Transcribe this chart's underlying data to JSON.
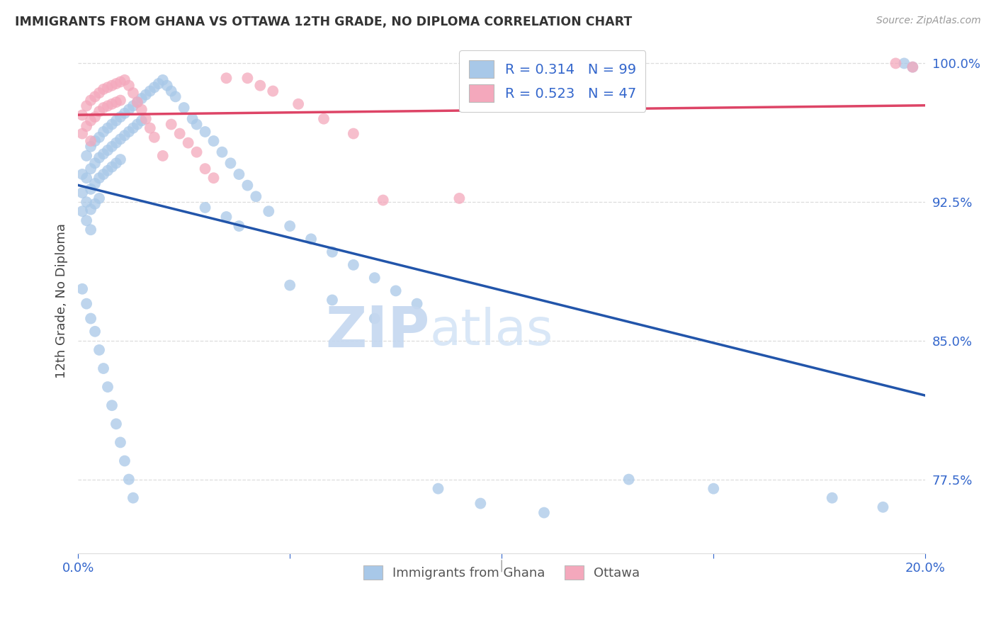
{
  "title": "IMMIGRANTS FROM GHANA VS OTTAWA 12TH GRADE, NO DIPLOMA CORRELATION CHART",
  "source": "Source: ZipAtlas.com",
  "ylabel": "12th Grade, No Diploma",
  "legend_label_blue": "Immigrants from Ghana",
  "legend_label_pink": "Ottawa",
  "legend_R_blue": "R = 0.314",
  "legend_N_blue": "N = 99",
  "legend_R_pink": "R = 0.523",
  "legend_N_pink": "N = 47",
  "blue_color": "#A8C8E8",
  "pink_color": "#F4A8BC",
  "blue_line_color": "#2255AA",
  "pink_line_color": "#DD4466",
  "legend_text_color": "#3366CC",
  "watermark_zip_color": "#C5D8F0",
  "watermark_atlas_color": "#D0E2F5",
  "axis_text_color": "#3366CC",
  "title_color": "#333333",
  "background_color": "#FFFFFF",
  "x_min": 0.0,
  "x_max": 0.2,
  "y_min": 0.735,
  "y_max": 1.008,
  "blue_x": [
    0.001,
    0.001,
    0.001,
    0.002,
    0.002,
    0.002,
    0.002,
    0.003,
    0.003,
    0.003,
    0.003,
    0.003,
    0.004,
    0.004,
    0.004,
    0.004,
    0.005,
    0.005,
    0.005,
    0.005,
    0.006,
    0.006,
    0.006,
    0.007,
    0.007,
    0.007,
    0.008,
    0.008,
    0.008,
    0.009,
    0.009,
    0.009,
    0.01,
    0.01,
    0.01,
    0.011,
    0.011,
    0.012,
    0.012,
    0.013,
    0.013,
    0.014,
    0.014,
    0.015,
    0.015,
    0.016,
    0.017,
    0.018,
    0.019,
    0.02,
    0.021,
    0.022,
    0.023,
    0.025,
    0.027,
    0.028,
    0.03,
    0.032,
    0.034,
    0.036,
    0.038,
    0.04,
    0.042,
    0.045,
    0.05,
    0.055,
    0.06,
    0.065,
    0.07,
    0.075,
    0.08,
    0.001,
    0.002,
    0.003,
    0.004,
    0.005,
    0.006,
    0.007,
    0.008,
    0.009,
    0.01,
    0.011,
    0.012,
    0.013,
    0.03,
    0.035,
    0.038,
    0.05,
    0.06,
    0.07,
    0.085,
    0.095,
    0.11,
    0.13,
    0.15,
    0.178,
    0.19,
    0.195,
    0.197
  ],
  "blue_y": [
    0.94,
    0.93,
    0.92,
    0.95,
    0.938,
    0.925,
    0.915,
    0.955,
    0.943,
    0.932,
    0.921,
    0.91,
    0.958,
    0.946,
    0.935,
    0.924,
    0.96,
    0.949,
    0.938,
    0.927,
    0.963,
    0.951,
    0.94,
    0.965,
    0.953,
    0.942,
    0.967,
    0.955,
    0.944,
    0.969,
    0.957,
    0.946,
    0.971,
    0.959,
    0.948,
    0.973,
    0.961,
    0.975,
    0.963,
    0.977,
    0.965,
    0.979,
    0.967,
    0.981,
    0.969,
    0.983,
    0.985,
    0.987,
    0.989,
    0.991,
    0.988,
    0.985,
    0.982,
    0.976,
    0.97,
    0.967,
    0.963,
    0.958,
    0.952,
    0.946,
    0.94,
    0.934,
    0.928,
    0.92,
    0.912,
    0.905,
    0.898,
    0.891,
    0.884,
    0.877,
    0.87,
    0.878,
    0.87,
    0.862,
    0.855,
    0.845,
    0.835,
    0.825,
    0.815,
    0.805,
    0.795,
    0.785,
    0.775,
    0.765,
    0.922,
    0.917,
    0.912,
    0.88,
    0.872,
    0.862,
    0.77,
    0.762,
    0.757,
    0.775,
    0.77,
    0.765,
    0.76,
    1.0,
    0.998
  ],
  "pink_x": [
    0.001,
    0.001,
    0.002,
    0.002,
    0.003,
    0.003,
    0.003,
    0.004,
    0.004,
    0.005,
    0.005,
    0.006,
    0.006,
    0.007,
    0.007,
    0.008,
    0.008,
    0.009,
    0.009,
    0.01,
    0.01,
    0.011,
    0.012,
    0.013,
    0.014,
    0.015,
    0.016,
    0.017,
    0.018,
    0.02,
    0.022,
    0.024,
    0.026,
    0.028,
    0.03,
    0.032,
    0.035,
    0.04,
    0.043,
    0.046,
    0.052,
    0.058,
    0.065,
    0.072,
    0.09,
    0.193,
    0.197
  ],
  "pink_y": [
    0.972,
    0.962,
    0.977,
    0.966,
    0.98,
    0.969,
    0.958,
    0.982,
    0.971,
    0.984,
    0.974,
    0.986,
    0.976,
    0.987,
    0.977,
    0.988,
    0.978,
    0.989,
    0.979,
    0.99,
    0.98,
    0.991,
    0.988,
    0.984,
    0.979,
    0.975,
    0.97,
    0.965,
    0.96,
    0.95,
    0.967,
    0.962,
    0.957,
    0.952,
    0.943,
    0.938,
    0.992,
    0.992,
    0.988,
    0.985,
    0.978,
    0.97,
    0.962,
    0.926,
    0.927,
    1.0,
    0.998
  ]
}
